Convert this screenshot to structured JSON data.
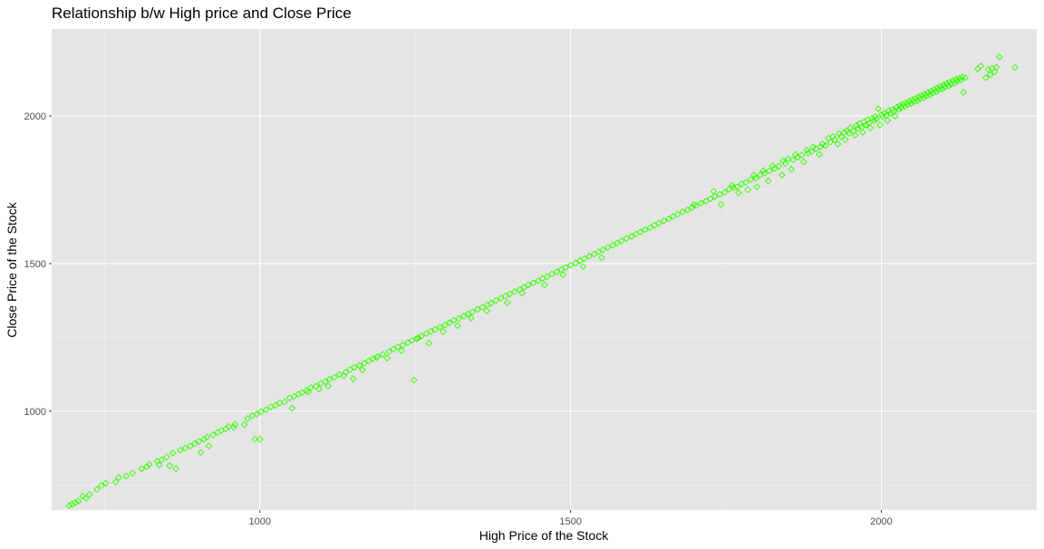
{
  "chart_data": {
    "type": "scatter",
    "title": "Relationship b/w High price and Close Price",
    "xlabel": "High Price of the  Stock",
    "ylabel": "Close Price of the Stock",
    "xlim": [
      665,
      2250
    ],
    "ylim": [
      665,
      2295
    ],
    "x_ticks": [
      1000,
      1500,
      2000
    ],
    "y_ticks": [
      1000,
      1500,
      2000
    ],
    "x_tick_labels": [
      "1000",
      "1500",
      "2000"
    ],
    "y_tick_labels": [
      "1000",
      "1500",
      "2000"
    ],
    "grid": true,
    "legend": "none",
    "marker": "diamond-open",
    "colors": {
      "points": "#33ff00",
      "panel": "#e5e5e5",
      "grid_major": "#ffffff",
      "grid_minor": "#f2f2f2",
      "tick_label": "#4d4d4d",
      "tick_mark": "#333333"
    },
    "series": [
      {
        "values": [
          [
            693,
            680
          ],
          [
            698,
            684
          ],
          [
            703,
            690
          ],
          [
            708,
            695
          ],
          [
            715,
            712
          ],
          [
            720,
            705
          ],
          [
            726,
            718
          ],
          [
            738,
            735
          ],
          [
            745,
            748
          ],
          [
            752,
            756
          ],
          [
            768,
            760
          ],
          [
            773,
            775
          ],
          [
            785,
            780
          ],
          [
            795,
            790
          ],
          [
            810,
            805
          ],
          [
            818,
            812
          ],
          [
            822,
            820
          ],
          [
            835,
            830
          ],
          [
            838,
            818
          ],
          [
            842,
            835
          ],
          [
            850,
            845
          ],
          [
            855,
            815
          ],
          [
            860,
            858
          ],
          [
            865,
            805
          ],
          [
            872,
            868
          ],
          [
            880,
            875
          ],
          [
            888,
            882
          ],
          [
            895,
            890
          ],
          [
            902,
            898
          ],
          [
            905,
            860
          ],
          [
            910,
            905
          ],
          [
            915,
            912
          ],
          [
            918,
            882
          ],
          [
            925,
            920
          ],
          [
            932,
            928
          ],
          [
            938,
            935
          ],
          [
            945,
            940
          ],
          [
            950,
            948
          ],
          [
            958,
            945
          ],
          [
            960,
            955
          ],
          [
            975,
            955
          ],
          [
            980,
            975
          ],
          [
            988,
            985
          ],
          [
            995,
            990
          ],
          [
            992,
            905
          ],
          [
            1000,
            905
          ],
          [
            1002,
            998
          ],
          [
            1010,
            1005
          ],
          [
            1018,
            1015
          ],
          [
            1025,
            1020
          ],
          [
            1032,
            1028
          ],
          [
            1040,
            1032
          ],
          [
            1048,
            1045
          ],
          [
            1052,
            1010
          ],
          [
            1055,
            1050
          ],
          [
            1062,
            1058
          ],
          [
            1068,
            1063
          ],
          [
            1075,
            1070
          ],
          [
            1078,
            1065
          ],
          [
            1082,
            1080
          ],
          [
            1090,
            1085
          ],
          [
            1095,
            1075
          ],
          [
            1098,
            1094
          ],
          [
            1105,
            1100
          ],
          [
            1110,
            1085
          ],
          [
            1112,
            1108
          ],
          [
            1120,
            1115
          ],
          [
            1128,
            1124
          ],
          [
            1135,
            1120
          ],
          [
            1138,
            1132
          ],
          [
            1145,
            1141
          ],
          [
            1150,
            1110
          ],
          [
            1152,
            1148
          ],
          [
            1160,
            1155
          ],
          [
            1165,
            1140
          ],
          [
            1168,
            1162
          ],
          [
            1175,
            1170
          ],
          [
            1182,
            1178
          ],
          [
            1188,
            1182
          ],
          [
            1190,
            1186
          ],
          [
            1198,
            1193
          ],
          [
            1205,
            1180
          ],
          [
            1208,
            1202
          ],
          [
            1215,
            1210
          ],
          [
            1222,
            1218
          ],
          [
            1228,
            1205
          ],
          [
            1230,
            1224
          ],
          [
            1238,
            1232
          ],
          [
            1245,
            1240
          ],
          [
            1248,
            1105
          ],
          [
            1252,
            1246
          ],
          [
            1255,
            1248
          ],
          [
            1260,
            1254
          ],
          [
            1268,
            1263
          ],
          [
            1272,
            1230
          ],
          [
            1275,
            1270
          ],
          [
            1282,
            1277
          ],
          [
            1290,
            1285
          ],
          [
            1295,
            1270
          ],
          [
            1298,
            1292
          ],
          [
            1305,
            1300
          ],
          [
            1312,
            1308
          ],
          [
            1318,
            1290
          ],
          [
            1320,
            1314
          ],
          [
            1328,
            1322
          ],
          [
            1335,
            1330
          ],
          [
            1340,
            1315
          ],
          [
            1342,
            1336
          ],
          [
            1350,
            1345
          ],
          [
            1358,
            1352
          ],
          [
            1365,
            1340
          ],
          [
            1366,
            1360
          ],
          [
            1372,
            1366
          ],
          [
            1380,
            1375
          ],
          [
            1388,
            1383
          ],
          [
            1395,
            1390
          ],
          [
            1398,
            1368
          ],
          [
            1402,
            1397
          ],
          [
            1410,
            1405
          ],
          [
            1418,
            1412
          ],
          [
            1422,
            1400
          ],
          [
            1425,
            1420
          ],
          [
            1432,
            1428
          ],
          [
            1440,
            1435
          ],
          [
            1448,
            1442
          ],
          [
            1455,
            1450
          ],
          [
            1458,
            1428
          ],
          [
            1462,
            1456
          ],
          [
            1470,
            1465
          ],
          [
            1478,
            1472
          ],
          [
            1485,
            1480
          ],
          [
            1488,
            1462
          ],
          [
            1492,
            1487
          ],
          [
            1500,
            1495
          ],
          [
            1508,
            1502
          ],
          [
            1515,
            1510
          ],
          [
            1520,
            1490
          ],
          [
            1522,
            1517
          ],
          [
            1530,
            1525
          ],
          [
            1538,
            1532
          ],
          [
            1545,
            1540
          ],
          [
            1550,
            1520
          ],
          [
            1552,
            1547
          ],
          [
            1560,
            1555
          ],
          [
            1568,
            1562
          ],
          [
            1575,
            1570
          ],
          [
            1582,
            1577
          ],
          [
            1590,
            1585
          ],
          [
            1598,
            1592
          ],
          [
            1605,
            1600
          ],
          [
            1612,
            1607
          ],
          [
            1620,
            1615
          ],
          [
            1628,
            1622
          ],
          [
            1635,
            1630
          ],
          [
            1642,
            1637
          ],
          [
            1650,
            1645
          ],
          [
            1658,
            1652
          ],
          [
            1665,
            1660
          ],
          [
            1672,
            1667
          ],
          [
            1680,
            1675
          ],
          [
            1688,
            1682
          ],
          [
            1695,
            1690
          ],
          [
            1698,
            1700
          ],
          [
            1702,
            1697
          ],
          [
            1710,
            1705
          ],
          [
            1718,
            1712
          ],
          [
            1725,
            1720
          ],
          [
            1730,
            1745
          ],
          [
            1732,
            1727
          ],
          [
            1740,
            1735
          ],
          [
            1742,
            1700
          ],
          [
            1748,
            1742
          ],
          [
            1755,
            1752
          ],
          [
            1760,
            1765
          ],
          [
            1762,
            1757
          ],
          [
            1768,
            1760
          ],
          [
            1770,
            1740
          ],
          [
            1775,
            1770
          ],
          [
            1782,
            1775
          ],
          [
            1785,
            1750
          ],
          [
            1790,
            1785
          ],
          [
            1795,
            1800
          ],
          [
            1798,
            1790
          ],
          [
            1800,
            1760
          ],
          [
            1805,
            1800
          ],
          [
            1810,
            1815
          ],
          [
            1812,
            1806
          ],
          [
            1818,
            1780
          ],
          [
            1820,
            1815
          ],
          [
            1825,
            1832
          ],
          [
            1828,
            1822
          ],
          [
            1835,
            1830
          ],
          [
            1840,
            1800
          ],
          [
            1842,
            1848
          ],
          [
            1845,
            1840
          ],
          [
            1850,
            1855
          ],
          [
            1855,
            1820
          ],
          [
            1858,
            1852
          ],
          [
            1862,
            1870
          ],
          [
            1865,
            1860
          ],
          [
            1872,
            1868
          ],
          [
            1875,
            1845
          ],
          [
            1880,
            1885
          ],
          [
            1882,
            1875
          ],
          [
            1888,
            1880
          ],
          [
            1890,
            1895
          ],
          [
            1895,
            1890
          ],
          [
            1900,
            1870
          ],
          [
            1902,
            1895
          ],
          [
            1905,
            1905
          ],
          [
            1910,
            1900
          ],
          [
            1915,
            1925
          ],
          [
            1918,
            1912
          ],
          [
            1922,
            1930
          ],
          [
            1925,
            1920
          ],
          [
            1930,
            1905
          ],
          [
            1932,
            1940
          ],
          [
            1935,
            1930
          ],
          [
            1940,
            1945
          ],
          [
            1942,
            1920
          ],
          [
            1945,
            1950
          ],
          [
            1948,
            1942
          ],
          [
            1950,
            1960
          ],
          [
            1955,
            1950
          ],
          [
            1958,
            1935
          ],
          [
            1960,
            1968
          ],
          [
            1962,
            1958
          ],
          [
            1965,
            1975
          ],
          [
            1968,
            1962
          ],
          [
            1970,
            1945
          ],
          [
            1972,
            1980
          ],
          [
            1975,
            1970
          ],
          [
            1978,
            1988
          ],
          [
            1980,
            1975
          ],
          [
            1982,
            1960
          ],
          [
            1985,
            1992
          ],
          [
            1988,
            1985
          ],
          [
            1990,
            1998
          ],
          [
            1992,
            1990
          ],
          [
            1995,
            2025
          ],
          [
            1998,
            1970
          ],
          [
            2000,
            2005
          ],
          [
            2002,
            1998
          ],
          [
            2005,
            2010
          ],
          [
            2008,
            2002
          ],
          [
            2010,
            1985
          ],
          [
            2012,
            2018
          ],
          [
            2015,
            2010
          ],
          [
            2018,
            2022
          ],
          [
            2020,
            2015
          ],
          [
            2022,
            2000
          ],
          [
            2025,
            2030
          ],
          [
            2028,
            2022
          ],
          [
            2030,
            2036
          ],
          [
            2032,
            2028
          ],
          [
            2035,
            2040
          ],
          [
            2038,
            2032
          ],
          [
            2040,
            2045
          ],
          [
            2042,
            2038
          ],
          [
            2045,
            2050
          ],
          [
            2048,
            2042
          ],
          [
            2050,
            2055
          ],
          [
            2052,
            2048
          ],
          [
            2055,
            2060
          ],
          [
            2058,
            2052
          ],
          [
            2060,
            2065
          ],
          [
            2062,
            2058
          ],
          [
            2065,
            2070
          ],
          [
            2068,
            2062
          ],
          [
            2070,
            2075
          ],
          [
            2072,
            2068
          ],
          [
            2075,
            2080
          ],
          [
            2078,
            2072
          ],
          [
            2080,
            2085
          ],
          [
            2082,
            2078
          ],
          [
            2085,
            2090
          ],
          [
            2088,
            2082
          ],
          [
            2090,
            2095
          ],
          [
            2092,
            2088
          ],
          [
            2095,
            2100
          ],
          [
            2098,
            2092
          ],
          [
            2100,
            2105
          ],
          [
            2102,
            2098
          ],
          [
            2105,
            2110
          ],
          [
            2108,
            2102
          ],
          [
            2110,
            2115
          ],
          [
            2112,
            2108
          ],
          [
            2115,
            2120
          ],
          [
            2118,
            2112
          ],
          [
            2120,
            2125
          ],
          [
            2122,
            2118
          ],
          [
            2125,
            2128
          ],
          [
            2128,
            2122
          ],
          [
            2130,
            2132
          ],
          [
            2132,
            2080
          ],
          [
            2135,
            2130
          ],
          [
            2155,
            2160
          ],
          [
            2160,
            2170
          ],
          [
            2168,
            2130
          ],
          [
            2172,
            2158
          ],
          [
            2175,
            2140
          ],
          [
            2178,
            2162
          ],
          [
            2182,
            2150
          ],
          [
            2185,
            2165
          ],
          [
            2190,
            2200
          ],
          [
            2215,
            2165
          ]
        ]
      }
    ]
  }
}
